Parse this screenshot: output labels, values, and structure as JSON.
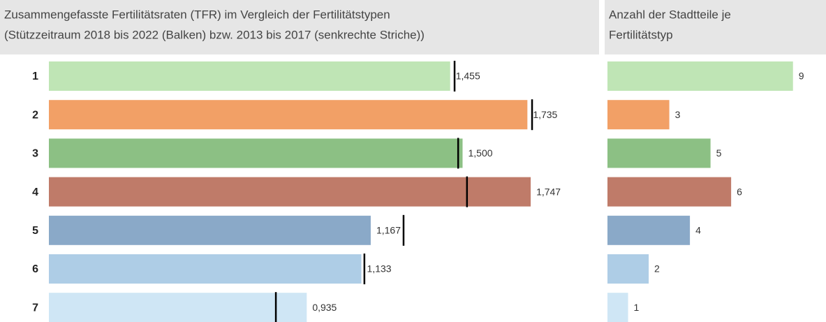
{
  "chart_data": [
    {
      "type": "bar",
      "orientation": "horizontal",
      "title": [
        "Zusammengefasste Fertilitätsraten (TFR) im Vergleich der Fertilitätstypen",
        "(Stützzeitraum 2018 bis 2022 (Balken) bzw. 2013 bis 2017 (senkrechte Striche))"
      ],
      "categories": [
        "1",
        "2",
        "3",
        "4",
        "5",
        "6",
        "7"
      ],
      "values": [
        1.455,
        1.735,
        1.5,
        1.747,
        1.167,
        1.133,
        0.935
      ],
      "value_labels": [
        "1,455",
        "1,735",
        "1,500",
        "1,747",
        "1,167",
        "1,133",
        "0,935"
      ],
      "reference_values": [
        1.471,
        1.752,
        1.484,
        1.516,
        1.286,
        1.144,
        0.823
      ],
      "colors": [
        "#bfe5b5",
        "#f2a066",
        "#8cc084",
        "#bf7b69",
        "#8aa9c8",
        "#aecde6",
        "#cfe6f5"
      ],
      "xlim": [
        0,
        2.0
      ]
    },
    {
      "type": "bar",
      "orientation": "horizontal",
      "title": [
        "Anzahl der Stadtteile je",
        "Fertilitätstyp"
      ],
      "values": [
        9,
        3,
        5,
        6,
        4,
        2,
        1
      ],
      "colors": [
        "#bfe5b5",
        "#f2a066",
        "#8cc084",
        "#bf7b69",
        "#8aa9c8",
        "#aecde6",
        "#cfe6f5"
      ],
      "xlim": [
        0,
        10.5
      ]
    }
  ]
}
